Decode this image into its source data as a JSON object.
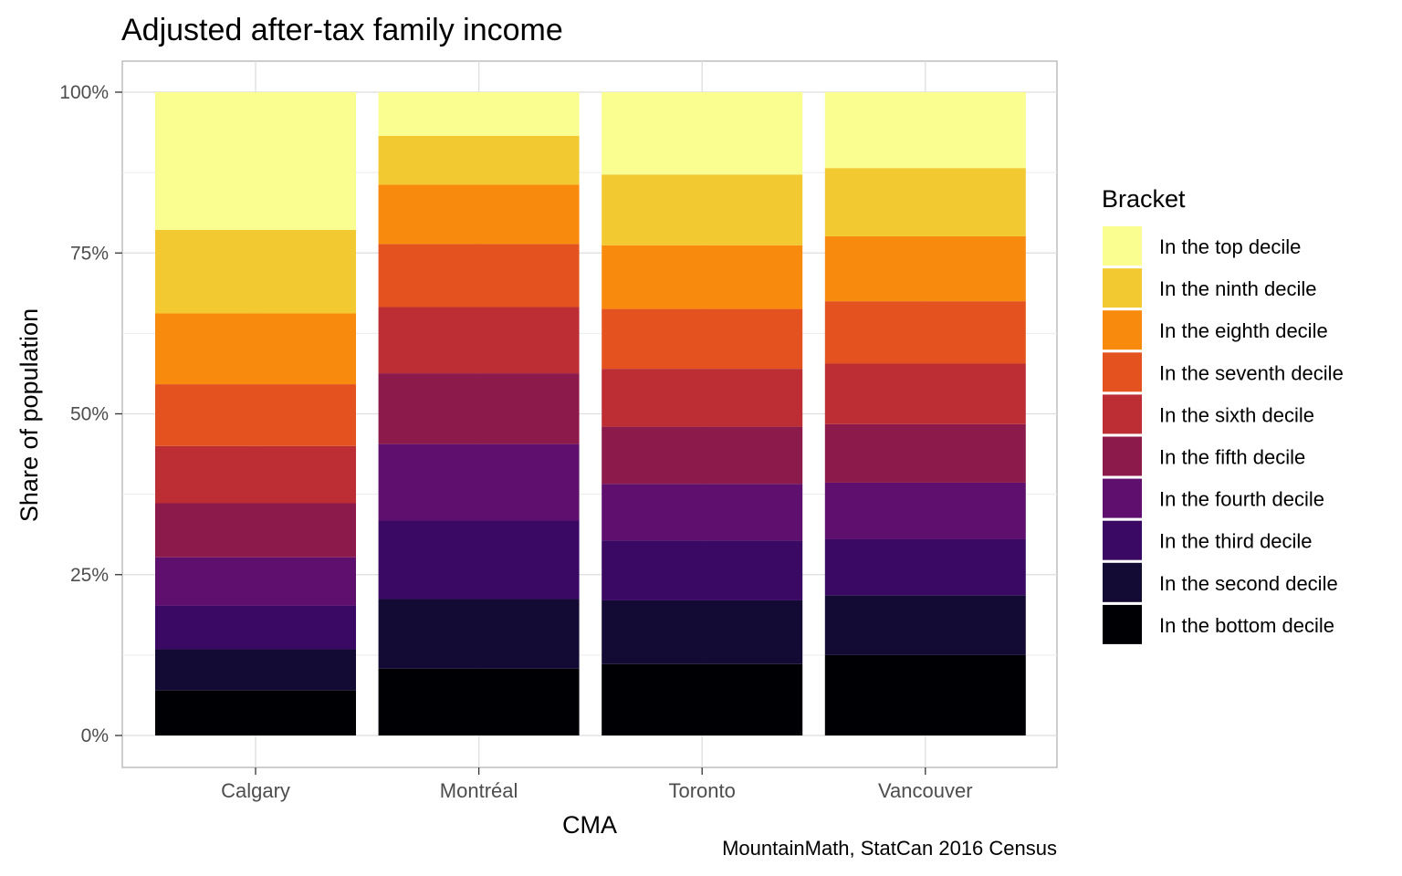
{
  "chart_data": {
    "type": "bar",
    "stacked": true,
    "title": "Adjusted after-tax family income",
    "xlabel": "CMA",
    "ylabel": "Share of population",
    "caption": "MountainMath, StatCan 2016 Census",
    "ylim": [
      0,
      1
    ],
    "y_ticks": [
      {
        "value": 0,
        "label": "0%"
      },
      {
        "value": 0.25,
        "label": "25%"
      },
      {
        "value": 0.5,
        "label": "50%"
      },
      {
        "value": 0.75,
        "label": "75%"
      },
      {
        "value": 1.0,
        "label": "100%"
      }
    ],
    "grid": true,
    "legend": {
      "title": "Bracket",
      "placement": "right"
    },
    "categories": [
      "Calgary",
      "Montréal",
      "Toronto",
      "Vancouver"
    ],
    "series": [
      {
        "name": "In the bottom decile",
        "color": "#000004",
        "values": [
          0.07,
          0.104,
          0.111,
          0.125
        ]
      },
      {
        "name": "In the second decile",
        "color": "#140B34",
        "values": [
          0.064,
          0.108,
          0.099,
          0.093
        ]
      },
      {
        "name": "In the third decile",
        "color": "#390963",
        "values": [
          0.068,
          0.122,
          0.093,
          0.087
        ]
      },
      {
        "name": "In the fourth decile",
        "color": "#5F0F6E",
        "values": [
          0.075,
          0.119,
          0.088,
          0.088
        ]
      },
      {
        "name": "In the fifth decile",
        "color": "#8C1A4B",
        "values": [
          0.084,
          0.11,
          0.089,
          0.091
        ]
      },
      {
        "name": "In the sixth decile",
        "color": "#BC2E34",
        "values": [
          0.089,
          0.103,
          0.09,
          0.094
        ]
      },
      {
        "name": "In the seventh decile",
        "color": "#E4531F",
        "values": [
          0.096,
          0.098,
          0.093,
          0.097
        ]
      },
      {
        "name": "In the eighth decile",
        "color": "#F88A0E",
        "values": [
          0.11,
          0.092,
          0.099,
          0.101
        ]
      },
      {
        "name": "In the ninth decile",
        "color": "#F3C932",
        "values": [
          0.13,
          0.076,
          0.11,
          0.106
        ]
      },
      {
        "name": "In the top decile",
        "color": "#FAFD8F",
        "values": [
          0.214,
          0.068,
          0.128,
          0.118
        ]
      }
    ]
  }
}
